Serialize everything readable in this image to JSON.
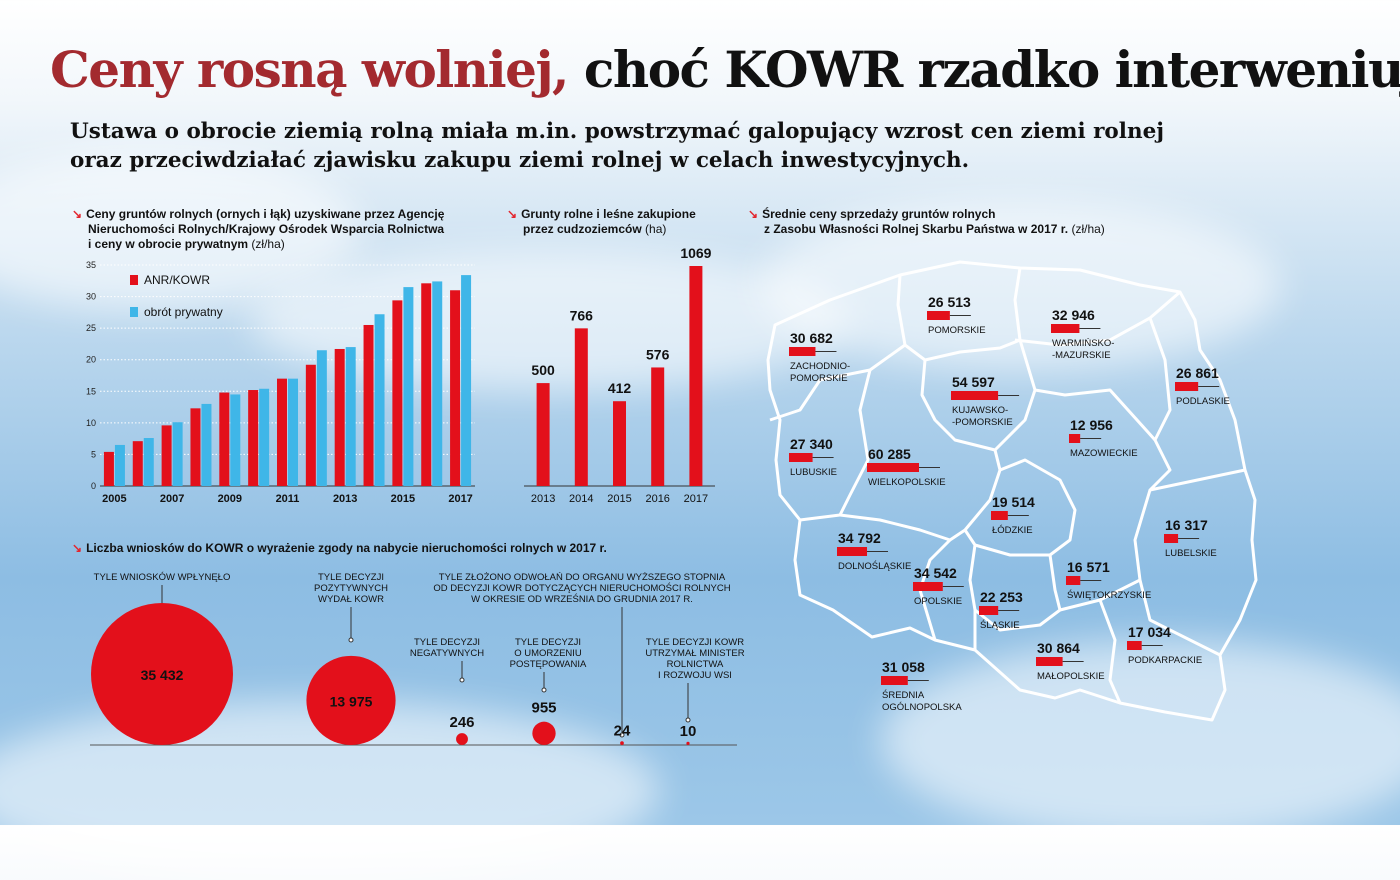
{
  "title": {
    "part1": "Ceny rosną wolniej,",
    "part2": "choć KOWR rzadko interweniuje"
  },
  "subtitle": {
    "line1": "Ustawa o obrocie ziemią rolną miała m.in. powstrzymać galopujący wzrost cen ziemi rolnej",
    "line2": "oraz przeciwdziałać zjawisku zakupu ziemi rolnej w celach inwestycyjnych."
  },
  "colors": {
    "red": "#e3101b",
    "blue": "#3fb6e8",
    "title_red": "#a32a2f"
  },
  "sections": {
    "prices": {
      "line1": "Ceny gruntów rolnych (ornych i łąk) uzyskiwane przez Agencję",
      "line2": "Nieruchomości Rolnych/Krajowy Ośrodek Wsparcia Rolnictwa",
      "line3": "i ceny w obrocie prywatnym",
      "unit": "(zł/ha)"
    },
    "foreign": {
      "line1": "Grunty rolne i leśne zakupione",
      "line2": "przez cudzoziemców",
      "unit": "(ha)"
    },
    "map": {
      "line1": "Średnie ceny sprzedaży gruntów rolnych",
      "line2": "z Zasobu Własności Rolnej Skarbu Państwa w 2017 r.",
      "unit": "(zł/ha)"
    },
    "applications": {
      "line1": "Liczba wniosków do KOWR o wyrażenie zgody na nabycie nieruchomości rolnych w 2017 r."
    }
  },
  "chart_data": [
    {
      "type": "bar",
      "title": "Ceny gruntów rolnych (ornych i łąk) uzyskiwane przez Agencję Nieruchomości Rolnych/Krajowy Ośrodek Wsparcia Rolnictwa i ceny w obrocie prywatnym (zł/ha)",
      "categories": [
        "2005",
        "2006",
        "2007",
        "2008",
        "2009",
        "2010",
        "2011",
        "2012",
        "2013",
        "2014",
        "2015",
        "2016",
        "2017"
      ],
      "x_tick_labels": [
        "2005",
        "2007",
        "2009",
        "2011",
        "2013",
        "2015",
        "2017"
      ],
      "y_ticks": [
        "0",
        "5",
        "10",
        "15",
        "20",
        "25",
        "30",
        "35"
      ],
      "ylim": [
        0,
        35
      ],
      "grid": "horizontal dotted",
      "legend_position": "top-left",
      "series": [
        {
          "name": "ANR/KOWR",
          "color": "#e3101b",
          "values": [
            5.4,
            7.1,
            9.6,
            12.3,
            14.8,
            15.2,
            17.0,
            19.2,
            21.7,
            25.5,
            29.4,
            32.1,
            31.0
          ]
        },
        {
          "name": "obrót prywatny",
          "color": "#3fb6e8",
          "values": [
            6.5,
            7.6,
            10.1,
            13.0,
            14.5,
            15.4,
            17.0,
            21.5,
            22.0,
            27.2,
            31.5,
            32.4,
            33.4
          ]
        }
      ]
    },
    {
      "type": "bar",
      "title": "Grunty rolne i leśne zakupione przez cudzoziemców (ha)",
      "categories": [
        "2013",
        "2014",
        "2015",
        "2016",
        "2017"
      ],
      "values": [
        500,
        766,
        412,
        576,
        1069
      ],
      "value_labels": [
        "500",
        "766",
        "412",
        "576",
        "1069"
      ],
      "color": "#e3101b"
    },
    {
      "type": "bar",
      "title": "Średnie ceny sprzedaży gruntów rolnych z Zasobu Własności Rolnej Skarbu Państwa w 2017 r. (zł/ha)",
      "categories": [
        "ZACHODNIO-POMORSKIE",
        "POMORSKIE",
        "WARMIŃSKO-MAZURSKIE",
        "PODLASKIE",
        "KUJAWSKO-POMORSKIE",
        "MAZOWIECKIE",
        "LUBUSKIE",
        "WIELKOPOLSKIE",
        "ŁÓDZKIE",
        "LUBELSKIE",
        "DOLNOŚLĄSKIE",
        "OPOLSKIE",
        "ŚLĄSKIE",
        "ŚWIĘTOKRZYSKIE",
        "MAŁOPOLSKIE",
        "PODKARPACKIE",
        "ŚREDNIA OGÓLNOPOLSKA"
      ],
      "values": [
        30682,
        26513,
        32946,
        26861,
        54597,
        12956,
        27340,
        60285,
        19514,
        16317,
        34792,
        34542,
        22253,
        16571,
        30864,
        17034,
        31058
      ],
      "regions": [
        {
          "name": "ZACHODNIO-",
          "name2": "POMORSKIE",
          "value": "30 682",
          "num": 30682
        },
        {
          "name": "POMORSKIE",
          "name2": "",
          "value": "26 513",
          "num": 26513
        },
        {
          "name": "WARMIŃSKO-",
          "name2": "-MAZURSKIE",
          "value": "32 946",
          "num": 32946
        },
        {
          "name": "PODLASKIE",
          "name2": "",
          "value": "26 861",
          "num": 26861
        },
        {
          "name": "KUJAWSKO-",
          "name2": "-POMORSKIE",
          "value": "54 597",
          "num": 54597
        },
        {
          "name": "MAZOWIECKIE",
          "name2": "",
          "value": "12 956",
          "num": 12956
        },
        {
          "name": "LUBUSKIE",
          "name2": "",
          "value": "27 340",
          "num": 27340
        },
        {
          "name": "WIELKOPOLSKIE",
          "name2": "",
          "value": "60 285",
          "num": 60285
        },
        {
          "name": "ŁÓDZKIE",
          "name2": "",
          "value": "19 514",
          "num": 19514
        },
        {
          "name": "LUBELSKIE",
          "name2": "",
          "value": "16 317",
          "num": 16317
        },
        {
          "name": "DOLNOŚLĄSKIE",
          "name2": "",
          "value": "34 792",
          "num": 34792
        },
        {
          "name": "OPOLSKIE",
          "name2": "",
          "value": "34 542",
          "num": 34542
        },
        {
          "name": "ŚLĄSKIE",
          "name2": "",
          "value": "22 253",
          "num": 22253
        },
        {
          "name": "ŚWIĘTOKRZYSKIE",
          "name2": "",
          "value": "16 571",
          "num": 16571
        },
        {
          "name": "MAŁOPOLSKIE",
          "name2": "",
          "value": "30 864",
          "num": 30864
        },
        {
          "name": "PODKARPACKIE",
          "name2": "",
          "value": "17 034",
          "num": 17034
        },
        {
          "name": "ŚREDNIA",
          "name2": "OGÓLNOPOLSKA",
          "value": "31 058",
          "num": 31058
        }
      ]
    },
    {
      "type": "bubble",
      "title": "Liczba wniosków do KOWR o wyrażenie zgody na nabycie nieruchomości rolnych w 2017 r.",
      "items": [
        {
          "label": [
            "TYLE WNIOSKÓW WPŁYNĘŁO"
          ],
          "value": 35432,
          "value_label": "35 432"
        },
        {
          "label": [
            "TYLE DECYZJI",
            "POZYTYWNYCH",
            "WYDAŁ KOWR"
          ],
          "value": 13975,
          "value_label": "13 975"
        },
        {
          "label": [
            "TYLE DECYZJI",
            "NEGATYWNYCH"
          ],
          "value": 246,
          "value_label": "246"
        },
        {
          "label": [
            "TYLE DECYZJI",
            "O UMORZENIU",
            "POSTĘPOWANIA"
          ],
          "value": 955,
          "value_label": "955"
        },
        {
          "label": [
            "TYLE ZŁOŻONO ODWOŁAŃ DO ORGANU WYŻSZEGO STOPNIA",
            "OD DECYZJI KOWR DOTYCZĄCYCH NIERUCHOMOŚCI ROLNYCH",
            "W OKRESIE OD WRZEŚNIA DO GRUDNIA 2017 R."
          ],
          "value": 24,
          "value_label": "24"
        },
        {
          "label": [
            "TYLE DECYZJI KOWR",
            "UTRZYMAŁ MINISTER",
            "ROLNICTWA",
            "I ROZWOJU WSI"
          ],
          "value": 10,
          "value_label": "10"
        }
      ]
    }
  ]
}
